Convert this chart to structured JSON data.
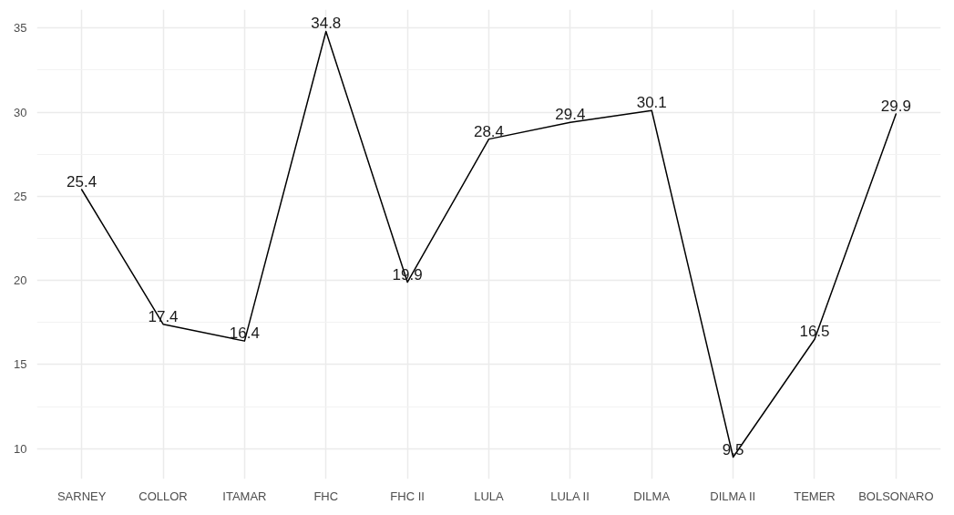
{
  "chart_data": {
    "type": "line",
    "categories": [
      "SARNEY",
      "COLLOR",
      "ITAMAR",
      "FHC",
      "FHC II",
      "LULA",
      "LULA II",
      "DILMA",
      "DILMA II",
      "TEMER",
      "BOLSONARO"
    ],
    "series": [
      {
        "color": "#000000",
        "values": [
          25.4,
          17.4,
          16.4,
          34.8,
          19.9,
          28.4,
          29.4,
          30.1,
          9.5,
          16.5,
          29.9
        ]
      }
    ],
    "ylim": [
      8.2,
      36.1
    ],
    "yticks": [
      10,
      15,
      20,
      25,
      30,
      35
    ],
    "grid": true,
    "data_labels": true,
    "marker": "none",
    "line_style": "solid"
  }
}
